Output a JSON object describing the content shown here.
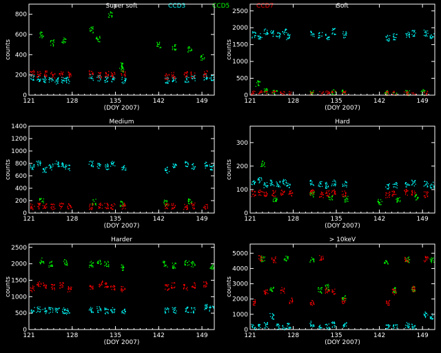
{
  "header": {
    "legend": [
      {
        "label": "CCD3",
        "color": "#00ffff"
      },
      {
        "label": "CCD5",
        "color": "#00ff00"
      },
      {
        "label": "CCD7",
        "color": "#ff0000"
      }
    ]
  },
  "chart_data": [
    {
      "type": "scatter",
      "title": "Super soft",
      "xlabel": "(DOY 2007)",
      "ylabel": "counts",
      "xlim": [
        121,
        151
      ],
      "ylim": [
        0,
        900
      ],
      "xticks": [
        121,
        128,
        135,
        142,
        149
      ],
      "yticks": [
        0,
        200,
        400,
        600,
        800
      ],
      "series": [
        {
          "name": "CCD3",
          "color": "#00ffff",
          "x": [
            121.5,
            122.5,
            123.5,
            124.5,
            125.5,
            126.5,
            127.2,
            131.0,
            132.3,
            133.5,
            134.5,
            136.3,
            143.3,
            144.5,
            146.5,
            147.5,
            149.5,
            150.5
          ],
          "y": [
            170,
            165,
            160,
            150,
            145,
            155,
            150,
            180,
            170,
            160,
            160,
            150,
            150,
            160,
            160,
            170,
            185,
            180
          ]
        },
        {
          "name": "CCD5",
          "color": "#00ff00",
          "x": [
            123.0,
            124.7,
            126.6,
            131.0,
            132.1,
            134.1,
            135.8,
            136.2,
            142.0,
            144.5,
            147.0,
            149.0
          ],
          "y": [
            600,
            520,
            540,
            650,
            560,
            800,
            300,
            260,
            500,
            480,
            460,
            380
          ]
        },
        {
          "name": "CCD7",
          "color": "#ff0000",
          "x": [
            121.5,
            122.6,
            123.5,
            124.8,
            126.2,
            127.5,
            131.0,
            132.5,
            133.5,
            134.5,
            136.2,
            143.3,
            144.3,
            146.3,
            147.5,
            149.5
          ],
          "y": [
            220,
            210,
            215,
            200,
            210,
            205,
            220,
            200,
            210,
            205,
            215,
            190,
            200,
            210,
            205,
            215
          ]
        }
      ]
    },
    {
      "type": "scatter",
      "title": "Soft",
      "xlabel": "(DOY 2007)",
      "ylabel": "counts",
      "xlim": [
        121,
        151
      ],
      "ylim": [
        0,
        2700
      ],
      "xticks": [
        121,
        128,
        135,
        142,
        149
      ],
      "yticks": [
        0,
        500,
        1000,
        1500,
        2000,
        2500
      ],
      "series": [
        {
          "name": "CCD3",
          "color": "#00ffff",
          "x": [
            121.5,
            122.5,
            123.5,
            124.5,
            125.5,
            126.5,
            127.2,
            131.0,
            132.3,
            133.5,
            134.5,
            136.3,
            143.3,
            144.5,
            146.5,
            147.5,
            149.5,
            150.5
          ],
          "y": [
            1800,
            1750,
            1900,
            1850,
            1800,
            1900,
            1750,
            1850,
            1800,
            1750,
            1900,
            1800,
            1700,
            1750,
            1800,
            1850,
            1850,
            1750
          ]
        },
        {
          "name": "CCD5",
          "color": "#00ff00",
          "x": [
            122.2,
            123.5,
            125.0,
            131.0,
            134.5,
            136.2,
            143.0,
            144.5,
            146.5,
            149.0
          ],
          "y": [
            350,
            150,
            80,
            100,
            80,
            90,
            60,
            70,
            80,
            90
          ]
        },
        {
          "name": "CCD7",
          "color": "#ff0000",
          "x": [
            121.5,
            122.6,
            123.5,
            124.8,
            126.2,
            127.5,
            131.0,
            132.5,
            133.5,
            134.5,
            136.2,
            143.3,
            144.3,
            146.3,
            147.5,
            149.5
          ],
          "y": [
            40,
            50,
            30,
            40,
            40,
            30,
            40,
            30,
            50,
            40,
            40,
            30,
            40,
            40,
            30,
            50
          ]
        }
      ]
    },
    {
      "type": "scatter",
      "title": "Medium",
      "xlabel": "(DOY 2007)",
      "ylabel": "counts",
      "xlim": [
        121,
        151
      ],
      "ylim": [
        0,
        1400
      ],
      "xticks": [
        121,
        128,
        135,
        142,
        149
      ],
      "yticks": [
        0,
        200,
        400,
        600,
        800,
        1000,
        1200,
        1400
      ],
      "series": [
        {
          "name": "CCD3",
          "color": "#00ffff",
          "x": [
            121.5,
            122.5,
            123.5,
            124.5,
            125.5,
            126.5,
            127.2,
            131.0,
            132.3,
            133.5,
            134.5,
            136.3,
            143.3,
            144.5,
            146.5,
            147.5,
            149.5,
            150.5
          ],
          "y": [
            750,
            800,
            700,
            750,
            800,
            780,
            740,
            800,
            760,
            750,
            800,
            750,
            700,
            750,
            800,
            760,
            780,
            740
          ]
        },
        {
          "name": "CCD5",
          "color": "#00ff00",
          "x": [
            123.0,
            131.5,
            136.0,
            143.0,
            147.0
          ],
          "y": [
            200,
            180,
            150,
            170,
            190
          ]
        },
        {
          "name": "CCD7",
          "color": "#ff0000",
          "x": [
            121.5,
            122.6,
            123.5,
            124.8,
            126.2,
            127.5,
            131.0,
            132.5,
            133.5,
            134.5,
            136.2,
            143.3,
            144.3,
            146.3,
            147.5,
            149.5
          ],
          "y": [
            110,
            120,
            115,
            110,
            120,
            115,
            110,
            120,
            115,
            110,
            120,
            110,
            115,
            110,
            120,
            115
          ]
        }
      ]
    },
    {
      "type": "scatter",
      "title": "Hard",
      "xlabel": "(DOY 2007)",
      "ylabel": "counts",
      "xlim": [
        121,
        151
      ],
      "ylim": [
        0,
        370
      ],
      "xticks": [
        121,
        128,
        135,
        142,
        149
      ],
      "yticks": [
        0,
        100,
        200,
        300
      ],
      "series": [
        {
          "name": "CCD3",
          "color": "#00ffff",
          "x": [
            121.5,
            122.5,
            123.5,
            124.5,
            125.5,
            126.5,
            127.2,
            131.0,
            132.3,
            133.5,
            134.5,
            136.3,
            143.3,
            144.5,
            146.5,
            147.5,
            149.5,
            150.5
          ],
          "y": [
            130,
            140,
            120,
            130,
            125,
            135,
            120,
            130,
            125,
            120,
            130,
            125,
            115,
            120,
            125,
            130,
            125,
            120
          ]
        },
        {
          "name": "CCD5",
          "color": "#00ff00",
          "x": [
            123.0,
            125.0,
            131.0,
            134.0,
            136.5,
            142.0,
            145.0,
            148.0
          ],
          "y": [
            210,
            60,
            80,
            70,
            60,
            50,
            60,
            70
          ]
        },
        {
          "name": "CCD7",
          "color": "#ff0000",
          "x": [
            121.5,
            122.6,
            123.5,
            124.8,
            126.2,
            127.5,
            131.0,
            132.5,
            133.5,
            134.5,
            136.2,
            143.3,
            144.3,
            146.3,
            147.5,
            149.5
          ],
          "y": [
            85,
            90,
            80,
            85,
            90,
            85,
            90,
            80,
            85,
            90,
            85,
            80,
            85,
            90,
            85,
            80
          ]
        }
      ]
    },
    {
      "type": "scatter",
      "title": "Harder",
      "xlabel": "(DOY 2007)",
      "ylabel": "counts",
      "xlim": [
        121,
        151
      ],
      "ylim": [
        0,
        2600
      ],
      "xticks": [
        121,
        128,
        135,
        142,
        149
      ],
      "yticks": [
        0,
        500,
        1000,
        1500,
        2000,
        2500
      ],
      "series": [
        {
          "name": "CCD3",
          "color": "#00ffff",
          "x": [
            121.5,
            122.5,
            123.5,
            124.5,
            125.5,
            126.5,
            127.2,
            131.0,
            132.3,
            133.5,
            134.5,
            136.3,
            143.3,
            144.5,
            146.5,
            147.5,
            149.5,
            150.5
          ],
          "y": [
            600,
            620,
            580,
            600,
            610,
            590,
            560,
            600,
            620,
            580,
            600,
            560,
            580,
            600,
            620,
            600,
            700,
            650
          ]
        },
        {
          "name": "CCD5",
          "color": "#00ff00",
          "x": [
            123.0,
            124.5,
            126.8,
            131.0,
            132.3,
            133.5,
            136.2,
            143.0,
            144.5,
            146.5,
            147.5,
            150.5
          ],
          "y": [
            2100,
            2000,
            2050,
            2000,
            2050,
            2000,
            1900,
            2000,
            1950,
            2050,
            2000,
            1900
          ]
        },
        {
          "name": "CCD7",
          "color": "#ff0000",
          "x": [
            121.5,
            122.6,
            123.5,
            124.8,
            126.2,
            127.5,
            131.0,
            132.5,
            133.5,
            134.5,
            136.2,
            143.3,
            144.3,
            146.3,
            147.5,
            149.5
          ],
          "y": [
            1250,
            1400,
            1350,
            1300,
            1350,
            1250,
            1300,
            1400,
            1350,
            1300,
            1250,
            1300,
            1350,
            1300,
            1350,
            1400
          ]
        }
      ]
    },
    {
      "type": "scatter",
      "title": "> 10keV",
      "xlabel": "(DOY 2007)",
      "ylabel": "counts",
      "xlim": [
        121,
        151
      ],
      "ylim": [
        0,
        5600
      ],
      "xticks": [
        121,
        128,
        135,
        142,
        149
      ],
      "yticks": [
        0,
        1000,
        2000,
        3000,
        4000,
        5000
      ],
      "series": [
        {
          "name": "CCD3",
          "color": "#00ffff",
          "x": [
            121.5,
            122.5,
            123.5,
            124.5,
            125.5,
            126.5,
            127.2,
            131.0,
            132.3,
            133.5,
            134.5,
            136.3,
            143.3,
            144.5,
            146.5,
            147.5,
            149.5,
            150.5
          ],
          "y": [
            200,
            180,
            300,
            900,
            200,
            100,
            250,
            400,
            150,
            200,
            350,
            300,
            200,
            250,
            300,
            200,
            1000,
            900
          ]
        },
        {
          "name": "CCD5",
          "color": "#00ff00",
          "x": [
            123.0,
            124.5,
            126.8,
            131.0,
            132.3,
            133.5,
            136.2,
            143.0,
            144.5,
            146.5,
            147.5,
            150.5
          ],
          "y": [
            4650,
            2700,
            4700,
            4600,
            2600,
            2800,
            2100,
            4500,
            2600,
            4600,
            2700,
            4600
          ]
        },
        {
          "name": "CCD7",
          "color": "#ff0000",
          "x": [
            121.5,
            122.6,
            123.5,
            124.8,
            126.2,
            127.5,
            131.0,
            132.5,
            133.5,
            134.5,
            136.2,
            143.3,
            144.3,
            146.3,
            147.5,
            149.5
          ],
          "y": [
            1800,
            4700,
            2500,
            4600,
            2600,
            1900,
            1800,
            4700,
            2600,
            2500,
            1900,
            1800,
            2500,
            4600,
            2700,
            4650
          ]
        }
      ]
    }
  ]
}
